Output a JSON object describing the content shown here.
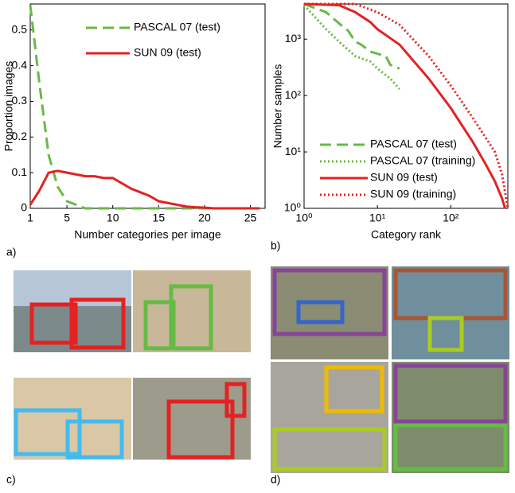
{
  "chart_data": [
    {
      "type": "line",
      "xlabel": "Number categories per image",
      "ylabel": "Proportion images",
      "xlim": [
        1,
        26.6
      ],
      "ylim": [
        0,
        0.573
      ],
      "xticks": [
        1,
        5,
        10,
        15,
        20,
        25
      ],
      "yticks": [
        0,
        0.1,
        0.2,
        0.3,
        0.4,
        0.5
      ],
      "legend": "upper right",
      "x": [
        1,
        2,
        3,
        4,
        5,
        6,
        7,
        8,
        9,
        10,
        11,
        12,
        13,
        14,
        15,
        16,
        17,
        18,
        19,
        20,
        21,
        22,
        23,
        24,
        25,
        26
      ],
      "series": [
        {
          "name": "PASCAL 07 (test)",
          "color": "#66bb44",
          "style": "dashed",
          "values": [
            0.57,
            0.35,
            0.15,
            0.06,
            0.02,
            0.01,
            0,
            0,
            0,
            0,
            0,
            0,
            0,
            0,
            0,
            0,
            0,
            0,
            0,
            0,
            0,
            0,
            0,
            0,
            0,
            0
          ]
        },
        {
          "name": "SUN 09 (test)",
          "color": "#e32222",
          "style": "solid",
          "values": [
            0.01,
            0.05,
            0.1,
            0.105,
            0.1,
            0.095,
            0.09,
            0.09,
            0.085,
            0.085,
            0.07,
            0.055,
            0.045,
            0.035,
            0.02,
            0.015,
            0.01,
            0.005,
            0.003,
            0.002,
            0,
            0,
            0,
            0,
            0,
            0
          ]
        }
      ]
    },
    {
      "type": "line",
      "xlabel": "Category rank",
      "ylabel": "Number samples",
      "log": true,
      "xlim": [
        1,
        600
      ],
      "ylim": [
        1,
        4200
      ],
      "xticks": [
        {
          "value": 1,
          "label": "10⁰"
        },
        {
          "value": 10,
          "label": "10¹"
        },
        {
          "value": 100,
          "label": "10²"
        }
      ],
      "yticks": [
        {
          "value": 1,
          "label": "10⁰"
        },
        {
          "value": 10,
          "label": "10¹"
        },
        {
          "value": 100,
          "label": "10²"
        },
        {
          "value": 1000,
          "label": "10³"
        }
      ],
      "legend": "lower right",
      "series": [
        {
          "name": "PASCAL 07 (test)",
          "color": "#66bb44",
          "style": "dashed",
          "x": [
            1,
            2,
            3,
            4,
            5,
            6,
            8,
            10,
            13,
            15,
            20
          ],
          "values": [
            4200,
            3000,
            1900,
            1400,
            900,
            800,
            600,
            550,
            500,
            350,
            300
          ]
        },
        {
          "name": "PASCAL 07 (training)",
          "color": "#66bb44",
          "style": "dotted",
          "x": [
            1,
            2,
            3,
            5,
            8,
            10,
            15,
            20
          ],
          "values": [
            4000,
            1500,
            900,
            500,
            400,
            300,
            200,
            130
          ]
        },
        {
          "name": "SUN 09 (test)",
          "color": "#e32222",
          "style": "solid",
          "x": [
            1,
            3,
            5,
            8,
            10,
            20,
            50,
            100,
            200,
            300,
            400,
            500,
            550
          ],
          "values": [
            4200,
            4000,
            3000,
            2000,
            1500,
            800,
            200,
            60,
            15,
            6,
            3,
            1.5,
            1
          ]
        },
        {
          "name": "SUN 09 (training)",
          "color": "#e32222",
          "style": "dotted",
          "x": [
            1,
            5,
            10,
            20,
            50,
            100,
            200,
            400,
            500,
            600
          ],
          "values": [
            4200,
            4200,
            3000,
            1800,
            500,
            150,
            40,
            10,
            4,
            1
          ]
        }
      ]
    }
  ],
  "panel_labels": [
    "a)",
    "b)",
    "c)",
    "d)"
  ]
}
